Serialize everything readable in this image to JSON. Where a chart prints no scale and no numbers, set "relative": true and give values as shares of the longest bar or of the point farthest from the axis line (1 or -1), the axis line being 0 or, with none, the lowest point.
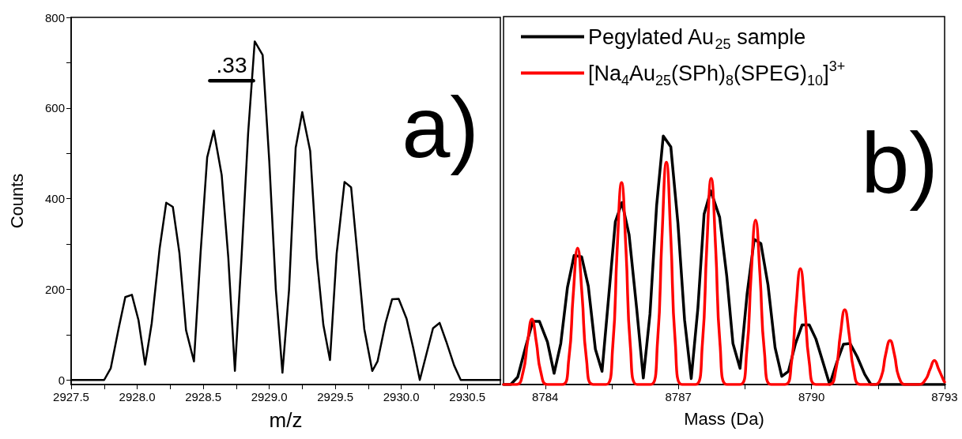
{
  "chart_data": [
    {
      "type": "line",
      "xlabel": "m/z",
      "ylabel": "Counts",
      "xlim": [
        2927.5,
        2930.75
      ],
      "ylim": [
        -10,
        800
      ],
      "xticks": [
        2927.5,
        {
          "value": 2927.75,
          "label": null
        },
        {
          "value": 2928,
          "label": "2928.0"
        },
        {
          "value": 2928.25,
          "label": null
        },
        2928.5,
        {
          "value": 2928.75,
          "label": null
        },
        {
          "value": 2929,
          "label": "2929.0"
        },
        {
          "value": 2929.25,
          "label": null
        },
        2929.5,
        {
          "value": 2929.75,
          "label": null
        },
        {
          "value": 2930,
          "label": "2930.0"
        },
        {
          "value": 2930.25,
          "label": null
        },
        2930.5
      ],
      "yticks": [
        0,
        {
          "value": 100,
          "label": null
        },
        200,
        {
          "value": 300,
          "label": null
        },
        400,
        {
          "value": 500,
          "label": null
        },
        600,
        {
          "value": 700,
          "label": null
        },
        800
      ],
      "grid": false,
      "legend": false,
      "marker": "none",
      "line_style": "solid",
      "annotations": [
        ".33",
        "a)"
      ],
      "series": [
        {
          "color": "#000000",
          "x": [
            2927.5,
            2927.75,
            2927.8,
            2927.86,
            2927.91,
            2927.96,
            2928.01,
            2928.06,
            2928.11,
            2928.17,
            2928.22,
            2928.27,
            2928.32,
            2928.37,
            2928.43,
            2928.48,
            2928.53,
            2928.58,
            2928.64,
            2928.69,
            2928.74,
            2928.79,
            2928.84,
            2928.89,
            2928.95,
            2929.0,
            2929.05,
            2929.1,
            2929.15,
            2929.2,
            2929.25,
            2929.31,
            2929.36,
            2929.41,
            2929.46,
            2929.51,
            2929.57,
            2929.62,
            2929.67,
            2929.72,
            2929.78,
            2929.82,
            2929.88,
            2929.93,
            2929.98,
            2930.04,
            2930.09,
            2930.14,
            2930.19,
            2930.24,
            2930.29,
            2930.34,
            2930.4,
            2930.45,
            2930.75
          ],
          "values": [
            0,
            0,
            26,
            114,
            183,
            188,
            132,
            34,
            125,
            290,
            391,
            382,
            280,
            110,
            41,
            280,
            491,
            550,
            452,
            270,
            20,
            270,
            544,
            747,
            717,
            484,
            199,
            16,
            199,
            512,
            591,
            505,
            270,
            121,
            44,
            278,
            437,
            425,
            270,
            112,
            20,
            41,
            125,
            178,
            179,
            135,
            71,
            0,
            57,
            114,
            126,
            85,
            32,
            0,
            0
          ]
        },
        {
          "color": "#000000",
          "x": [
            2928.55,
            2928.88
          ],
          "values": [
            660,
            660
          ]
        }
      ]
    },
    {
      "type": "line",
      "xlabel": "Mass (Da)",
      "relative": true,
      "xlim": [
        8783.06,
        8793
      ],
      "xticks": [
        8784,
        {
          "value": 8785.5,
          "label": null
        },
        8787,
        {
          "value": 8788.5,
          "label": null
        },
        8790,
        {
          "value": 8791.5,
          "label": null
        },
        8793
      ],
      "grid": false,
      "legend": "top left",
      "marker": "none",
      "line_style": "solid",
      "annotations": [
        "b)"
      ],
      "series": [
        {
          "name": "Pegylated Au$_{25}$ sample",
          "color": "#000000",
          "x": [
            8783.06,
            8783.22,
            8783.38,
            8783.56,
            8783.72,
            8783.87,
            8784.05,
            8784.2,
            8784.35,
            8784.5,
            8784.65,
            8784.82,
            8784.97,
            8785.13,
            8785.28,
            8785.43,
            8785.58,
            8785.73,
            8785.89,
            8786.06,
            8786.21,
            8786.36,
            8786.51,
            8786.66,
            8786.83,
            8786.99,
            8787.14,
            8787.29,
            8787.44,
            8787.58,
            8787.73,
            8787.93,
            8788.09,
            8788.23,
            8788.39,
            8788.55,
            8788.71,
            8788.86,
            8789.02,
            8789.18,
            8789.33,
            8789.48,
            8789.64,
            8789.79,
            8789.95,
            8790.1,
            8790.26,
            8790.41,
            8790.57,
            8790.72,
            8790.87,
            8791.03,
            8791.2,
            8791.34,
            8793
          ],
          "values": [
            0,
            0,
            0.03,
            0.153,
            0.254,
            0.254,
            0.171,
            0.045,
            0.165,
            0.39,
            0.519,
            0.514,
            0.396,
            0.142,
            0.053,
            0.354,
            0.655,
            0.732,
            0.602,
            0.307,
            0.026,
            0.283,
            0.72,
            1,
            0.956,
            0.649,
            0.26,
            0.024,
            0.307,
            0.685,
            0.779,
            0.673,
            0.437,
            0.165,
            0.065,
            0.366,
            0.584,
            0.567,
            0.401,
            0.148,
            0.033,
            0.053,
            0.165,
            0.24,
            0.24,
            0.183,
            0.089,
            0,
            0.089,
            0.162,
            0.165,
            0.112,
            0.041,
            0,
            0
          ]
        },
        {
          "name": "[Na$_{4}$Au$_{25}$(SPh)$_{8}$(SPEG)$_{10}$]$^{3+}$",
          "color": "#ff0000",
          "x": [
            8783.06,
            8783.35,
            8783.5,
            8783.6,
            8783.7,
            8783.8,
            8783.9,
            8784.05,
            8784.38,
            8784.53,
            8784.63,
            8784.73,
            8784.83,
            8784.93,
            8785.08,
            8785.37,
            8785.52,
            8785.62,
            8785.72,
            8785.82,
            8785.92,
            8786.07,
            8786.38,
            8786.53,
            8786.63,
            8786.73,
            8786.83,
            8786.93,
            8787.08,
            8787.39,
            8787.54,
            8787.64,
            8787.74,
            8787.84,
            8787.94,
            8788.09,
            8788.39,
            8788.54,
            8788.64,
            8788.74,
            8788.84,
            8788.94,
            8789.09,
            8789.4,
            8789.55,
            8789.65,
            8789.75,
            8789.85,
            8789.95,
            8790.1,
            8790.4,
            8790.55,
            8790.65,
            8790.75,
            8790.85,
            8790.95,
            8791.1,
            8791.42,
            8791.57,
            8791.67,
            8791.77,
            8791.87,
            8791.97,
            8792.12,
            8792.42,
            8792.57,
            8792.67,
            8792.77,
            8792.87,
            8792.97,
            8793
          ],
          "values": [
            0,
            0,
            0.05,
            0.17,
            0.263,
            0.17,
            0.05,
            0,
            0,
            0.1,
            0.36,
            0.549,
            0.36,
            0.1,
            0,
            0,
            0.15,
            0.54,
            0.812,
            0.54,
            0.15,
            0,
            0,
            0.17,
            0.59,
            0.894,
            0.59,
            0.17,
            0,
            0,
            0.16,
            0.55,
            0.829,
            0.55,
            0.16,
            0,
            0,
            0.13,
            0.44,
            0.661,
            0.44,
            0.13,
            0,
            0,
            0.09,
            0.31,
            0.466,
            0.31,
            0.09,
            0,
            0,
            0.06,
            0.2,
            0.301,
            0.2,
            0.06,
            0,
            0,
            0.03,
            0.12,
            0.177,
            0.12,
            0.03,
            0,
            0,
            0.02,
            0.06,
            0.097,
            0.06,
            0.02,
            0.01
          ]
        }
      ]
    }
  ]
}
